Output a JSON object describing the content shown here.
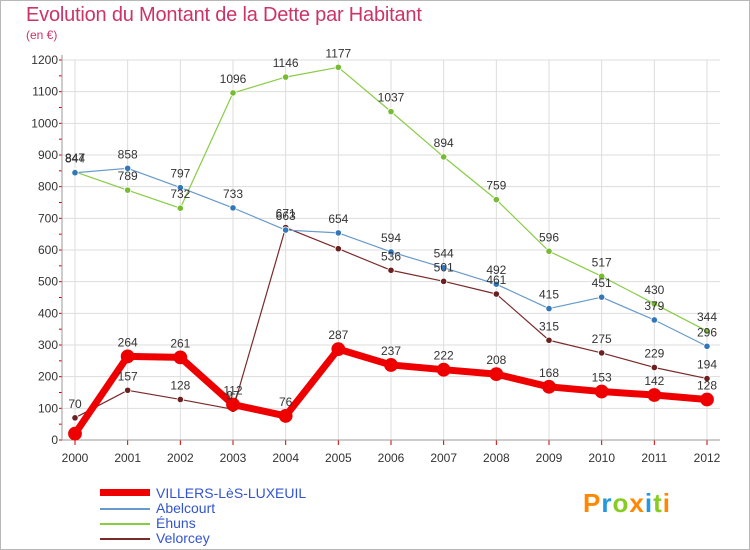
{
  "title": "Evolution du Montant de la Dette par Habitant",
  "subtitle": "(en €)",
  "logo": {
    "text": "Proxiti",
    "colors": [
      "#ff8800",
      "#2299dd",
      "#88cc22",
      "#ff8800",
      "#2299dd",
      "#88cc22",
      "#ff8800"
    ]
  },
  "chart_data": {
    "type": "line",
    "title": "Evolution du Montant de la Dette par Habitant",
    "subtitle": "(en €)",
    "x": [
      "2000",
      "2001",
      "2002",
      "2003",
      "2004",
      "2005",
      "2006",
      "2007",
      "2008",
      "2009",
      "2010",
      "2011",
      "2012"
    ],
    "ylim": [
      0,
      1200
    ],
    "yticks": [
      "0",
      "100",
      "200",
      "300",
      "400",
      "500",
      "600",
      "700",
      "800",
      "900",
      "1000",
      "1100",
      "1200"
    ],
    "grid": true,
    "legend_position": "bottom-left",
    "series": [
      {
        "name": "Velorcey",
        "color": "#7a2a2a",
        "point_color": "#6b1f1f",
        "width": 1.2,
        "values": [
          70,
          157,
          128,
          97,
          671,
          604,
          536,
          501,
          461,
          315,
          275,
          229,
          194
        ],
        "labels": [
          "70",
          "157",
          "128",
          "97",
          "671",
          "",
          "536",
          "501",
          "461",
          "315",
          "275",
          "229",
          "194"
        ]
      },
      {
        "name": "Éhuns",
        "color": "#88cc44",
        "point_color": "#77bb33",
        "width": 1.2,
        "values": [
          847,
          789,
          732,
          1096,
          1146,
          1177,
          1037,
          894,
          759,
          596,
          517,
          430,
          344
        ],
        "labels": [
          "847",
          "789",
          "732",
          "1096",
          "1146",
          "1177",
          "1037",
          "894",
          "759",
          "596",
          "517",
          "430",
          "344"
        ]
      },
      {
        "name": "Abelcourt",
        "color": "#6699cc",
        "point_color": "#3377bb",
        "width": 1.2,
        "values": [
          844,
          858,
          797,
          733,
          663,
          654,
          594,
          544,
          492,
          415,
          451,
          379,
          296
        ],
        "labels": [
          "844",
          "858",
          "797",
          "733",
          "663",
          "654",
          "594",
          "544",
          "492",
          "415",
          "451",
          "379",
          "296"
        ]
      },
      {
        "name": "VILLERS-LèS-LUXEUIL",
        "color": "#ee0000",
        "point_color": "#ee0000",
        "width": 7,
        "values": [
          20,
          264,
          261,
          112,
          76,
          287,
          237,
          222,
          208,
          168,
          153,
          142,
          128
        ],
        "labels": [
          "",
          "264",
          "261",
          "112",
          "76",
          "287",
          "237",
          "222",
          "208",
          "168",
          "153",
          "142",
          "128"
        ]
      }
    ],
    "legend": [
      "VILLERS-LèS-LUXEUIL",
      "Abelcourt",
      "Éhuns",
      "Velorcey"
    ]
  }
}
